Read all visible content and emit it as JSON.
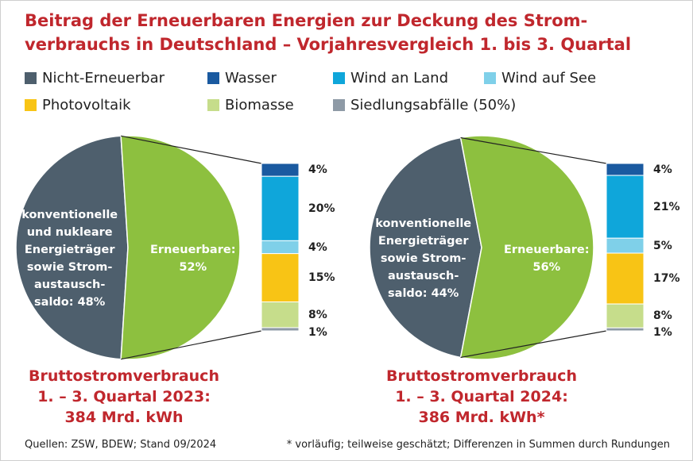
{
  "title": "Beitrag der Erneuerbaren Energien zur Deckung des Strom-\nverbrauchs in Deutschland – Vorjahresvergleich 1. bis 3. Quartal",
  "legend": [
    {
      "name": "Nicht-Erneuerbar",
      "color": "#4e5f6d"
    },
    {
      "name": "Wasser",
      "color": "#1a5aa0"
    },
    {
      "name": "Wind an Land",
      "color": "#0fa6da"
    },
    {
      "name": "Wind auf See",
      "color": "#7fd0e9"
    },
    {
      "name": "Photovoltaik",
      "color": "#f8c415"
    },
    {
      "name": "Biomasse",
      "color": "#c6dd8b"
    },
    {
      "name": "Siedlungsabfälle (50%)",
      "color": "#8e9aa6"
    }
  ],
  "chart_data": [
    {
      "type": "pie",
      "values": [
        48,
        52
      ],
      "value_labels": [
        "konventionelle\nund nukleare\nEnergieträger\nsowie Strom-\naustausch-\nsaldo: 48%",
        "Erneuerbare:\n52%"
      ],
      "colors": [
        "#4e5f6d",
        "#8dc03f"
      ],
      "breakdown": {
        "values": [
          4,
          20,
          4,
          15,
          8,
          1
        ],
        "value_labels": [
          "4%",
          "20%",
          "4%",
          "15%",
          "8%",
          "1%"
        ]
      },
      "subtitle": "Bruttostromverbrauch\n1. – 3. Quartal 2023:\n384 Mrd. kWh"
    },
    {
      "type": "pie",
      "values": [
        44,
        56
      ],
      "value_labels": [
        "konventionelle\nEnergieträger\nsowie Strom-\naustausch-\nsaldo: 44%",
        "Erneuerbare:\n56%"
      ],
      "colors": [
        "#4e5f6d",
        "#8dc03f"
      ],
      "breakdown": {
        "values": [
          4,
          21,
          5,
          17,
          8,
          1
        ],
        "value_labels": [
          "4%",
          "21%",
          "5%",
          "17%",
          "8%",
          "1%"
        ]
      },
      "subtitle": "Bruttostromverbrauch\n1. – 3. Quartal 2024:\n386 Mrd. kWh*"
    }
  ],
  "source": "Quellen: ZSW, BDEW; Stand 09/2024",
  "footnote": "* vorläufig; teilweise geschätzt; Differenzen in Summen durch Rundungen"
}
